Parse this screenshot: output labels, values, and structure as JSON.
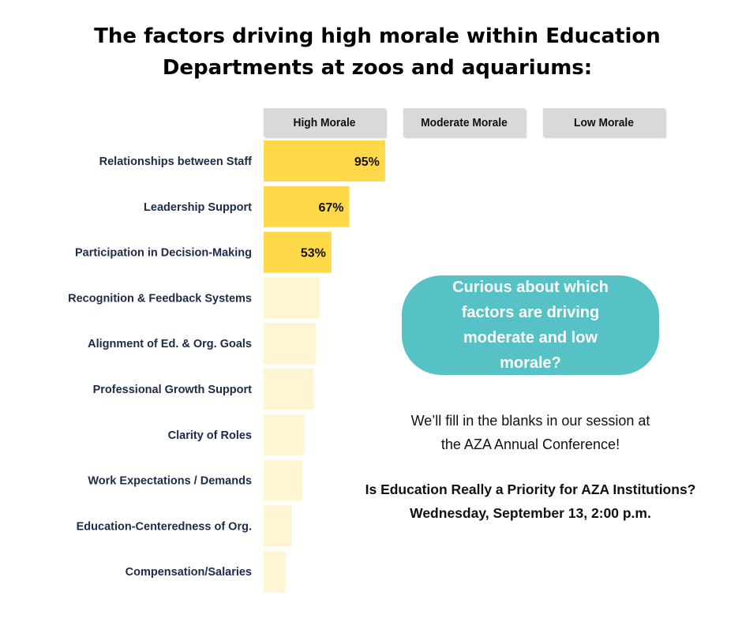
{
  "title": {
    "line1": "The factors driving high morale within Education",
    "line2": "Departments at zoos and aquariums:"
  },
  "column_headers": [
    "High Morale",
    "Moderate Morale",
    "Low Morale"
  ],
  "colors": {
    "labeled_bar": "#ffd94a",
    "unlabeled_bar": "#fff5d2",
    "header_bg": "#d9d9d9",
    "callout_bg": "#56c2c6",
    "category_text": "#1e2a4a"
  },
  "chart_data": {
    "type": "bar",
    "orientation": "horizontal",
    "categories": [
      "Relationships between Staff",
      "Leadership Support",
      "Participation in Decision-Making",
      "Recognition & Feedback Systems",
      "Alignment of Ed. & Org. Goals",
      "Professional Growth Support",
      "Clarity of Roles",
      "Work Expectations / Demands",
      "Education-Centeredness of Org.",
      "Compensation/Salaries"
    ],
    "values": [
      95,
      67,
      53,
      44,
      41,
      39,
      32,
      30,
      22,
      17
    ],
    "value_labels": [
      "95%",
      "67%",
      "53%",
      "",
      "",
      "",
      "",
      "",
      "",
      ""
    ],
    "xlim": [
      0,
      100
    ],
    "grid": false,
    "legend": "none"
  },
  "callout": {
    "lines": [
      "Curious about which",
      "factors are driving",
      "moderate and low morale?"
    ]
  },
  "note": {
    "line1": "We’ll fill in the blanks in our session at",
    "line2": "the AZA Annual Conference!"
  },
  "session": {
    "line1": "Is Education Really a Priority for AZA Institutions?",
    "line2": "Wednesday, September 13, 2:00 p.m."
  }
}
